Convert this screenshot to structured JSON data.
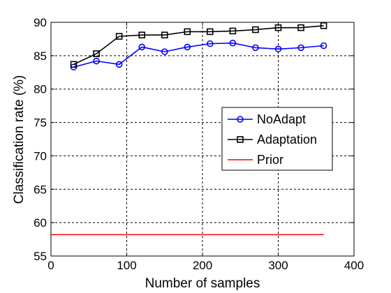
{
  "chart_data": {
    "type": "line",
    "xlabel": "Number of samples",
    "ylabel": "Classification rate (%)",
    "xlim": [
      0,
      400
    ],
    "ylim": [
      55,
      90
    ],
    "xticks": [
      0,
      100,
      200,
      300,
      400
    ],
    "yticks": [
      55,
      60,
      65,
      70,
      75,
      80,
      85,
      90
    ],
    "grid": true,
    "legend_position": "right",
    "series": [
      {
        "name": "NoAdapt",
        "color": "#0000ff",
        "marker": "circle",
        "x": [
          30,
          60,
          90,
          120,
          150,
          180,
          210,
          240,
          270,
          300,
          330,
          360
        ],
        "values": [
          83.3,
          84.2,
          83.7,
          86.3,
          85.6,
          86.3,
          86.8,
          86.9,
          86.2,
          86.0,
          86.2,
          86.5
        ]
      },
      {
        "name": "Adaptation",
        "color": "#000000",
        "marker": "square",
        "x": [
          30,
          60,
          90,
          120,
          150,
          180,
          210,
          240,
          270,
          300,
          330,
          360
        ],
        "values": [
          83.7,
          85.3,
          87.9,
          88.1,
          88.1,
          88.6,
          88.6,
          88.7,
          88.9,
          89.2,
          89.2,
          89.5
        ]
      },
      {
        "name": "Prior",
        "color": "#ff0000",
        "marker": "none",
        "x": [
          0,
          360
        ],
        "values": [
          58.2,
          58.2
        ]
      }
    ]
  }
}
